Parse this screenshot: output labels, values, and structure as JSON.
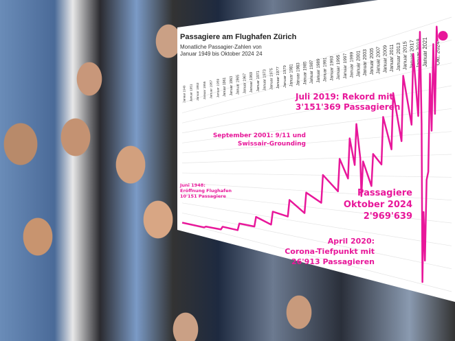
{
  "chart_data": {
    "type": "line",
    "title": "Passagiere am Flughafen Zürich",
    "subtitle": "Monatliche Passagier-Zahlen von Januar 1949 bis Oktober 2024",
    "subtitle_mark": "24",
    "line_color": "#e8179a",
    "ylim": [
      0,
      3300000
    ],
    "x_tick_labels": [
      "Januar 1949",
      "Januar 1951",
      "Januar 1953",
      "Januar 1955",
      "Januar 1957",
      "Januar 1959",
      "Januar 1961",
      "Januar 1963",
      "Januar 1965",
      "Januar 1967",
      "Januar 1969",
      "Januar 1971",
      "Januar 1973",
      "Januar 1975",
      "Januar 1977",
      "Januar 1979",
      "Januar 1981",
      "Januar 1983",
      "Januar 1985",
      "Januar 1987",
      "Januar 1989",
      "Januar 1991",
      "Januar 1993",
      "Januar 1995",
      "Januar 1997",
      "Januar 1999",
      "Januar 2001",
      "Januar 2003",
      "Januar 2005",
      "Januar 2007",
      "Januar 2009",
      "Januar 2011",
      "Januar 2013",
      "Januar 2015",
      "Januar 2017",
      "Januar 2019",
      "Januar 2021",
      "Okt. 2024"
    ],
    "points": [
      [
        "1948-06",
        10151
      ],
      [
        "1955-01",
        30000
      ],
      [
        "1955-07",
        60000
      ],
      [
        "1960-01",
        80000
      ],
      [
        "1960-07",
        150000
      ],
      [
        "1965-01",
        150000
      ],
      [
        "1965-07",
        300000
      ],
      [
        "1970-01",
        300000
      ],
      [
        "1970-07",
        500000
      ],
      [
        "1975-01",
        400000
      ],
      [
        "1975-07",
        650000
      ],
      [
        "1980-01",
        600000
      ],
      [
        "1980-07",
        900000
      ],
      [
        "1985-01",
        700000
      ],
      [
        "1985-07",
        1050000
      ],
      [
        "1990-01",
        900000
      ],
      [
        "1990-07",
        1350000
      ],
      [
        "1995-01",
        1100000
      ],
      [
        "1995-07",
        1600000
      ],
      [
        "1998-01",
        1300000
      ],
      [
        "1998-07",
        1900000
      ],
      [
        "2000-01",
        1500000
      ],
      [
        "2000-07",
        2100000
      ],
      [
        "2001-09",
        1600000
      ],
      [
        "2002-01",
        1050000
      ],
      [
        "2002-07",
        1550000
      ],
      [
        "2005-01",
        1200000
      ],
      [
        "2005-07",
        1650000
      ],
      [
        "2008-01",
        1500000
      ],
      [
        "2008-07",
        2150000
      ],
      [
        "2011-01",
        1700000
      ],
      [
        "2011-07",
        2450000
      ],
      [
        "2014-01",
        1800000
      ],
      [
        "2014-07",
        2650000
      ],
      [
        "2017-01",
        2000000
      ],
      [
        "2017-07",
        2900000
      ],
      [
        "2019-01",
        2100000
      ],
      [
        "2019-07",
        3151369
      ],
      [
        "2020-01",
        2000000
      ],
      [
        "2020-04",
        26913
      ],
      [
        "2020-08",
        900000
      ],
      [
        "2021-01",
        300000
      ],
      [
        "2021-07",
        1300000
      ],
      [
        "2022-01",
        1400000
      ],
      [
        "2022-07",
        2600000
      ],
      [
        "2023-01",
        1900000
      ],
      [
        "2023-07",
        2950000
      ],
      [
        "2024-01",
        2100000
      ],
      [
        "2024-07",
        3150000
      ],
      [
        "2024-10",
        2969639
      ]
    ],
    "annotations": [
      {
        "at": "1948-06",
        "lines": [
          "Juni 1948:",
          "Eröffnung Flughafen",
          "10'151 Passagiere"
        ]
      },
      {
        "at": "2001-09",
        "lines": [
          "September 2001: 9/11 und",
          "Swissair-Grounding"
        ]
      },
      {
        "at": "2019-07",
        "lines": [
          "Juli 2019: Rekord mit",
          "3'151'369 Passagieren"
        ]
      },
      {
        "at": "2024-10",
        "lines": [
          "Passagiere",
          "Oktober 2024",
          "2'969'639"
        ]
      },
      {
        "at": "2020-04",
        "lines": [
          "April 2020:",
          "Corona-Tiefpunkt mit",
          "26'913 Passagieren"
        ]
      }
    ]
  }
}
